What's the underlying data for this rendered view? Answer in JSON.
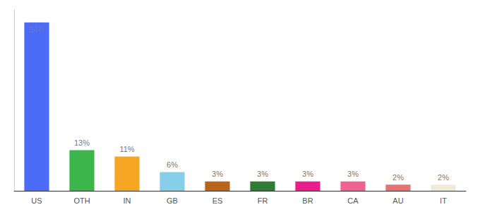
{
  "chart_data": {
    "type": "bar",
    "categories": [
      "US",
      "OTH",
      "IN",
      "GB",
      "ES",
      "FR",
      "BR",
      "CA",
      "AU",
      "IT"
    ],
    "values": [
      54,
      13,
      11,
      6,
      3,
      3,
      3,
      3,
      2,
      2
    ],
    "value_labels": [
      "54%",
      "13%",
      "11%",
      "6%",
      "3%",
      "3%",
      "3%",
      "3%",
      "2%",
      "2%"
    ],
    "colors": [
      "#4a6cf7",
      "#3cb54a",
      "#f5a623",
      "#87ceeb",
      "#b8651b",
      "#2e7d32",
      "#e91e8c",
      "#f06292",
      "#e57373",
      "#f0ead6"
    ],
    "ylim": [
      0,
      58
    ],
    "grid": false,
    "data_labels": true,
    "tick_labels": "x"
  }
}
